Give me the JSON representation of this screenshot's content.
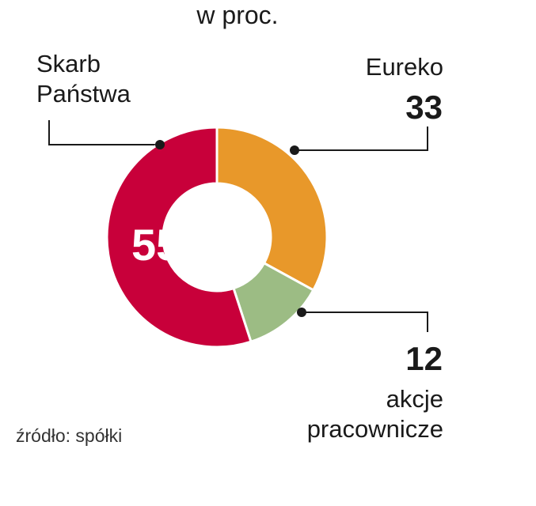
{
  "chart_data": {
    "type": "pie",
    "subtitle": "w proc.",
    "categories": [
      "Eureko",
      "akcje pracownicze",
      "Skarb Państwa"
    ],
    "values": [
      33,
      12,
      55
    ],
    "colors": [
      "#e8982a",
      "#9cbc84",
      "#c8003a"
    ],
    "donut": true,
    "source": "źródło: spółki"
  }
}
